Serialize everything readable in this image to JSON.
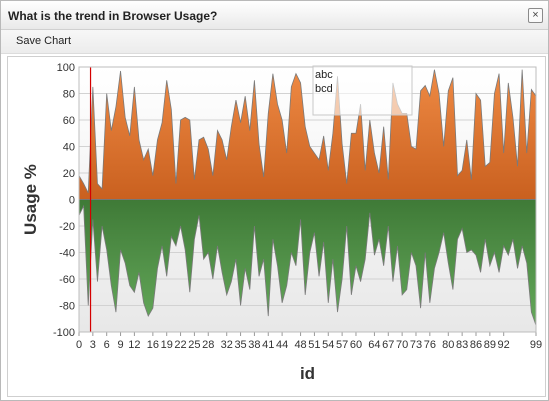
{
  "window": {
    "title": "What is the trend in Browser Usage?",
    "close_glyph": "×"
  },
  "toolbar": {
    "save_label": "Save Chart"
  },
  "chart_data": {
    "type": "area",
    "xlabel": "id",
    "ylabel": "Usage %",
    "ylim": [
      -100,
      100
    ],
    "xlim": [
      0,
      99
    ],
    "yticks": [
      100,
      80,
      60,
      40,
      20,
      0,
      -20,
      -40,
      -60,
      -80,
      -100
    ],
    "xticks": [
      0,
      3,
      6,
      9,
      12,
      16,
      19,
      22,
      25,
      28,
      32,
      35,
      38,
      41,
      44,
      48,
      51,
      54,
      57,
      60,
      64,
      67,
      70,
      73,
      76,
      80,
      83,
      86,
      89,
      92,
      99
    ],
    "grid": true,
    "legend_position": "top",
    "legend_items": [
      "abc",
      "bcd"
    ],
    "marker_x": 2.5,
    "colors": {
      "abc": "#e07a3a",
      "bcd": "#5a9a4e",
      "marker": "#d40000"
    },
    "x": [
      0,
      1,
      2,
      3,
      4,
      5,
      6,
      7,
      8,
      9,
      10,
      11,
      12,
      13,
      14,
      15,
      16,
      17,
      18,
      19,
      20,
      21,
      22,
      23,
      24,
      25,
      26,
      27,
      28,
      29,
      30,
      31,
      32,
      33,
      34,
      35,
      36,
      37,
      38,
      39,
      40,
      41,
      42,
      43,
      44,
      45,
      46,
      47,
      48,
      49,
      50,
      51,
      52,
      53,
      54,
      55,
      56,
      57,
      58,
      59,
      60,
      61,
      62,
      63,
      64,
      65,
      66,
      67,
      68,
      69,
      70,
      71,
      72,
      73,
      74,
      75,
      76,
      77,
      78,
      79,
      80,
      81,
      82,
      83,
      84,
      85,
      86,
      87,
      88,
      89,
      90,
      91,
      92,
      93,
      94,
      95,
      96,
      97,
      98,
      99
    ],
    "series": [
      {
        "name": "abc",
        "values": [
          18,
          12,
          5,
          85,
          12,
          8,
          80,
          52,
          70,
          97,
          62,
          48,
          85,
          45,
          30,
          38,
          18,
          45,
          58,
          90,
          68,
          12,
          60,
          62,
          60,
          15,
          45,
          47,
          38,
          18,
          52,
          45,
          30,
          55,
          75,
          58,
          78,
          52,
          90,
          42,
          17,
          65,
          95,
          72,
          60,
          35,
          85,
          95,
          88,
          55,
          40,
          35,
          30,
          48,
          22,
          50,
          93,
          42,
          12,
          50,
          50,
          72,
          22,
          60,
          35,
          20,
          55,
          15,
          88,
          72,
          65,
          65,
          40,
          38,
          82,
          86,
          78,
          98,
          80,
          40,
          82,
          92,
          18,
          22,
          45,
          15,
          80,
          75,
          25,
          28,
          80,
          95,
          35,
          88,
          62,
          25,
          98,
          35,
          83,
          78
        ]
      },
      {
        "name": "bcd",
        "values": [
          -12,
          -5,
          -80,
          -15,
          -62,
          -20,
          -38,
          -65,
          -85,
          -38,
          -48,
          -65,
          -70,
          -55,
          -78,
          -88,
          -82,
          -52,
          -35,
          -58,
          -28,
          -35,
          -20,
          -38,
          -70,
          -30,
          -12,
          -45,
          -40,
          -60,
          -35,
          -55,
          -72,
          -62,
          -45,
          -80,
          -52,
          -68,
          -20,
          -58,
          -45,
          -88,
          -30,
          -50,
          -78,
          -65,
          -40,
          -50,
          -15,
          -72,
          -40,
          -25,
          -58,
          -32,
          -78,
          -45,
          -85,
          -60,
          -20,
          -72,
          -50,
          -62,
          -45,
          -10,
          -42,
          -30,
          -50,
          -20,
          -62,
          -35,
          -72,
          -68,
          -40,
          -50,
          -82,
          -40,
          -78,
          -52,
          -40,
          -25,
          -48,
          -68,
          -30,
          -22,
          -40,
          -38,
          -42,
          -55,
          -30,
          -50,
          -40,
          -55,
          -35,
          -42,
          -30,
          -52,
          -35,
          -48,
          -85,
          -95
        ]
      }
    ]
  }
}
